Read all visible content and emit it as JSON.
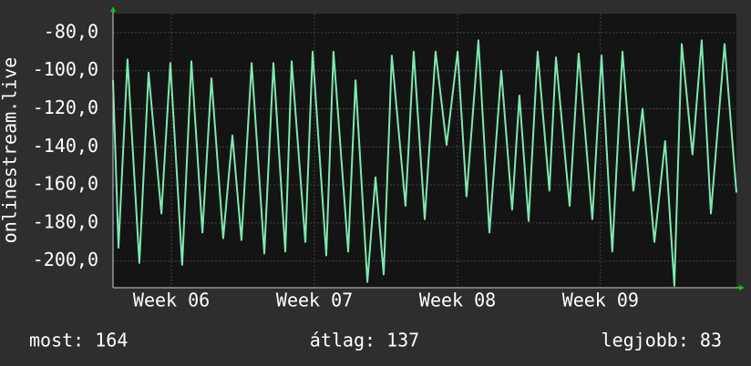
{
  "chart_data": {
    "type": "line",
    "y_label": "onlinestream.live",
    "xlim": [
      0,
      30.54
    ],
    "xticks": [
      {
        "value": 2.86,
        "label": "Week 06"
      },
      {
        "value": 9.87,
        "label": "Week 07"
      },
      {
        "value": 16.88,
        "label": "Week 08"
      },
      {
        "value": 23.88,
        "label": "Week 09"
      }
    ],
    "ylim": [
      -214,
      -70
    ],
    "yticks": [
      {
        "value": -80,
        "label": "-80,0"
      },
      {
        "value": -100,
        "label": "-100,0"
      },
      {
        "value": -120,
        "label": "-120,0"
      },
      {
        "value": -140,
        "label": "-140,0"
      },
      {
        "value": -160,
        "label": "-160,0"
      },
      {
        "value": -180,
        "label": "-180,0"
      },
      {
        "value": -200,
        "label": "-200,0"
      }
    ],
    "grid": true,
    "x": [
      0,
      0.27,
      0.71,
      1.29,
      1.74,
      2.37,
      2.81,
      3.39,
      3.84,
      4.38,
      4.82,
      5.4,
      5.85,
      6.29,
      6.79,
      7.41,
      7.86,
      8.44,
      8.75,
      9.42,
      9.78,
      10.45,
      10.8,
      11.52,
      11.88,
      12.46,
      12.86,
      13.26,
      13.66,
      14.33,
      14.73,
      15.27,
      15.8,
      16.34,
      16.88,
      17.32,
      17.9,
      18.44,
      19.02,
      19.55,
      19.91,
      20.36,
      20.8,
      21.38,
      21.7,
      22.37,
      22.81,
      23.48,
      23.93,
      24.46,
      24.96,
      25.49,
      25.94,
      26.52,
      27.05,
      27.5,
      27.86,
      28.39,
      28.84,
      29.29,
      29.96,
      30.54
    ],
    "series": [
      {
        "name": "onlinestream.live",
        "color": "#7ee8b0",
        "values": [
          -105,
          -193,
          -94,
          -201,
          -101,
          -175,
          -96,
          -202,
          -95,
          -185,
          -104,
          -188,
          -134,
          -189,
          -96,
          -196,
          -96,
          -195,
          -95,
          -190,
          -90,
          -197,
          -90,
          -195,
          -105,
          -211,
          -156,
          -207,
          -92,
          -171,
          -90,
          -178,
          -90,
          -139,
          -90,
          -166,
          -84,
          -185,
          -100,
          -173,
          -113,
          -179,
          -90,
          -163,
          -93,
          -171,
          -91,
          -178,
          -92,
          -195,
          -90,
          -163,
          -120,
          -190,
          -137,
          -213,
          -86,
          -144,
          -84,
          -175,
          -86,
          -164
        ]
      }
    ]
  },
  "footer": {
    "current": "most: 164",
    "average": "átlag: 137",
    "best": "legjobb: 83"
  }
}
